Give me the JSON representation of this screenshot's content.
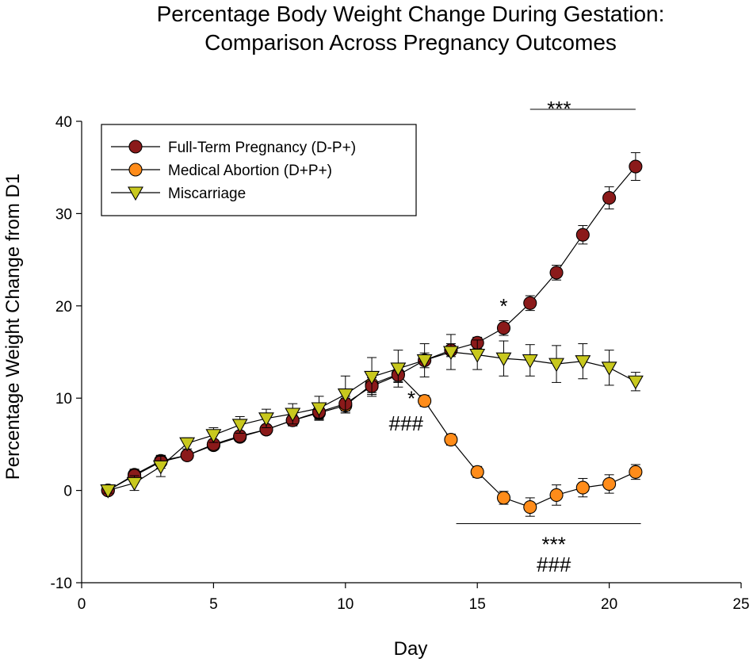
{
  "chart_data": {
    "type": "line",
    "title_lines": [
      "Percentage Body Weight Change During Gestation:",
      "Comparison Across Pregnancy Outcomes"
    ],
    "xlabel": "Day",
    "ylabel": "Percentage Weight Change from D1",
    "xlim": [
      0,
      25
    ],
    "ylim": [
      -10,
      40
    ],
    "xticks": [
      0,
      5,
      10,
      15,
      20,
      25
    ],
    "yticks": [
      -10,
      0,
      10,
      20,
      30,
      40
    ],
    "grid": false,
    "legend_position": "top-left",
    "series": [
      {
        "name": "Full-Term Pregnancy (D-P+)",
        "marker": "circle",
        "color": "#8b1a1a",
        "x": [
          1,
          2,
          3,
          4,
          5,
          6,
          7,
          8,
          9,
          10,
          11,
          12,
          13,
          14,
          15,
          16,
          17,
          18,
          19,
          20,
          21
        ],
        "y": [
          0,
          1.6,
          3.1,
          3.8,
          5.0,
          5.9,
          6.6,
          7.6,
          8.5,
          9.4,
          11.3,
          12.5,
          14.1,
          15.2,
          16.0,
          17.6,
          20.3,
          23.6,
          27.7,
          31.7,
          35.1
        ],
        "err": [
          0.3,
          0.6,
          0.7,
          0.5,
          0.5,
          0.5,
          0.5,
          0.6,
          0.7,
          0.8,
          0.9,
          0.8,
          0.8,
          0.7,
          0.6,
          0.8,
          0.8,
          0.8,
          1.0,
          1.2,
          1.5
        ]
      },
      {
        "name": "Medical Abortion (D+P+)",
        "marker": "circle",
        "color": "#ff8c1a",
        "x": [
          1,
          2,
          3,
          4,
          5,
          6,
          7,
          8,
          9,
          10,
          11,
          12,
          13,
          14,
          15,
          16,
          17,
          18,
          19,
          20,
          21
        ],
        "y": [
          0,
          1.7,
          3.2,
          3.8,
          4.9,
          5.8,
          6.6,
          7.6,
          8.4,
          9.2,
          11.5,
          12.6,
          9.7,
          5.5,
          2.0,
          -0.8,
          -1.8,
          -0.5,
          0.3,
          0.7,
          2.0
        ],
        "err": [
          0.3,
          0.6,
          0.6,
          0.5,
          0.5,
          0.5,
          0.5,
          0.6,
          0.7,
          0.8,
          0.9,
          0.8,
          0.6,
          0.6,
          0.6,
          0.7,
          1.0,
          1.1,
          1.0,
          1.0,
          0.8
        ]
      },
      {
        "name": "Miscarriage",
        "marker": "triangle-down",
        "color": "#c8c81e",
        "x": [
          1,
          2,
          3,
          4,
          5,
          6,
          7,
          8,
          9,
          10,
          11,
          12,
          13,
          14,
          15,
          16,
          17,
          18,
          19,
          20,
          21
        ],
        "y": [
          0,
          0.8,
          2.6,
          5.1,
          6.0,
          7.1,
          7.8,
          8.3,
          8.9,
          10.4,
          12.3,
          13.2,
          14.1,
          15.0,
          14.7,
          14.3,
          14.1,
          13.7,
          14.0,
          13.3,
          11.8
        ],
        "err": [
          0.3,
          0.8,
          1.1,
          0.6,
          0.8,
          0.9,
          1.0,
          1.1,
          1.3,
          2.0,
          2.1,
          2.0,
          1.8,
          1.9,
          1.6,
          1.9,
          1.7,
          2.0,
          1.9,
          1.9,
          1.0
        ]
      }
    ],
    "annotations": [
      {
        "text": "*",
        "x": 16,
        "y": 19.2
      },
      {
        "text": "*",
        "x": 12.5,
        "y": 9.2
      },
      {
        "text": "###",
        "x": 12.3,
        "y": 6.5
      },
      {
        "text": "***",
        "x": 18.1,
        "y": 40.6
      },
      {
        "text": "***",
        "x": 17.9,
        "y": -6.6
      },
      {
        "text": "###",
        "x": 17.9,
        "y": -8.8
      }
    ],
    "significance_lines": [
      {
        "x_start": 17,
        "x_end": 21,
        "y": 41.3
      },
      {
        "x_start": 14.2,
        "x_end": 21.2,
        "y": -3.6
      }
    ]
  }
}
